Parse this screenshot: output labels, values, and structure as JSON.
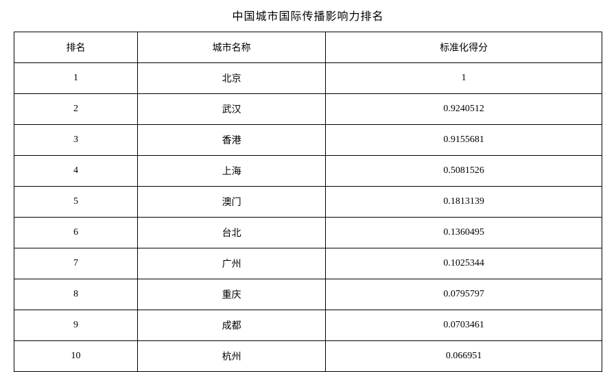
{
  "title": "中国城市国际传播影响力排名",
  "table": {
    "type": "table",
    "background_color": "#ffffff",
    "border_color": "#000000",
    "text_color": "#000000",
    "title_fontsize": 16,
    "cell_fontsize": 14,
    "columns": [
      {
        "key": "rank",
        "label": "排名",
        "width_pct": 21,
        "align": "center"
      },
      {
        "key": "city",
        "label": "城市名称",
        "width_pct": 32,
        "align": "center"
      },
      {
        "key": "score",
        "label": "标准化得分",
        "width_pct": 47,
        "align": "center"
      }
    ],
    "rows": [
      {
        "rank": "1",
        "city": "北京",
        "score": "1"
      },
      {
        "rank": "2",
        "city": "武汉",
        "score": "0.9240512"
      },
      {
        "rank": "3",
        "city": "香港",
        "score": "0.9155681"
      },
      {
        "rank": "4",
        "city": "上海",
        "score": "0.5081526"
      },
      {
        "rank": "5",
        "city": "澳门",
        "score": "0.1813139"
      },
      {
        "rank": "6",
        "city": "台北",
        "score": "0.1360495"
      },
      {
        "rank": "7",
        "city": "广州",
        "score": "0.1025344"
      },
      {
        "rank": "8",
        "city": "重庆",
        "score": "0.0795797"
      },
      {
        "rank": "9",
        "city": "成都",
        "score": "0.0703461"
      },
      {
        "rank": "10",
        "city": "杭州",
        "score": "0.066951"
      }
    ]
  }
}
